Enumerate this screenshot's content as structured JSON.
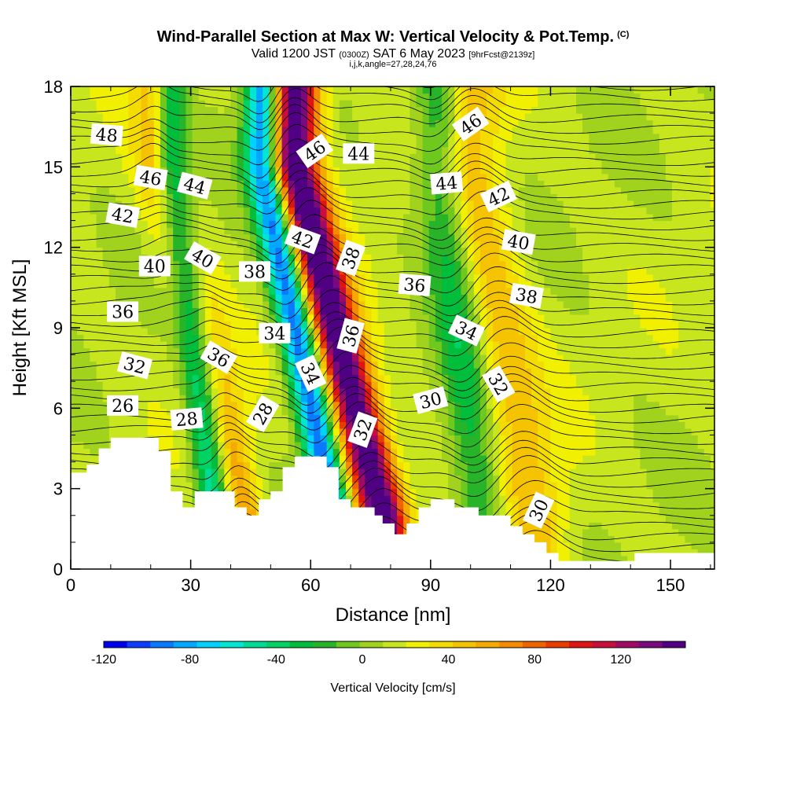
{
  "title": {
    "main": "Wind-Parallel Section at Max W: Vertical Velocity & Pot.Temp.",
    "copyright": "(C)",
    "valid_prefix": "Valid 1200 JST",
    "valid_utc": "(0300Z)",
    "valid_date": "SAT 6 May 2023",
    "forecast": "[9hrFcst@2139z]",
    "indices": "i,j,k,angle=27,28,24,76"
  },
  "colors": {
    "terrain": "#ffffff",
    "contour": "#000000",
    "scale": [
      "#0000f0",
      "#0c3cff",
      "#0a78ff",
      "#00a8ff",
      "#00d2ff",
      "#00e6d2",
      "#00dc96",
      "#00d264",
      "#00be3c",
      "#28b428",
      "#6ec81e",
      "#a0d21e",
      "#c8e61e",
      "#f0f000",
      "#f5dc00",
      "#f5c300",
      "#f5aa00",
      "#f58c00",
      "#f06400",
      "#eb3c00",
      "#e11414",
      "#c80f3c",
      "#a00a64",
      "#780a7d",
      "#500082"
    ]
  },
  "chart_data": {
    "type": "heatmap",
    "xlabel": "Distance [nm]",
    "ylabel": "Height [Kft MSL]",
    "xlim": [
      0,
      161
    ],
    "ylim": [
      0,
      18
    ],
    "xticks": [
      0,
      30,
      60,
      90,
      120,
      150
    ],
    "yticks": [
      0,
      3,
      6,
      9,
      12,
      15,
      18
    ],
    "colorbar": {
      "label": "Vertical Velocity [cm/s]",
      "min": -120,
      "max": 150,
      "step": 10,
      "ticks": [
        -120,
        -80,
        -40,
        0,
        40,
        80,
        120
      ]
    },
    "updrafts": [
      {
        "x_base": 42,
        "x_top": 23,
        "amplitude": 65,
        "width": 6
      },
      {
        "x_base": 78,
        "x_top": 56,
        "amplitude": 140,
        "width": 6
      },
      {
        "x_base": 116,
        "x_top": 100,
        "amplitude": 35,
        "width": 8
      }
    ],
    "downdrafts": [
      {
        "x_base": 37,
        "x_top": 25,
        "amplitude": 95,
        "width": 4.5
      },
      {
        "x_base": 66,
        "x_top": 48,
        "amplitude": 105,
        "width": 4.5
      },
      {
        "x_base": 103,
        "x_top": 92,
        "amplitude": 40,
        "width": 6
      }
    ],
    "terrain": [
      {
        "x": 0,
        "h": 3.6
      },
      {
        "x": 4,
        "h": 3.9
      },
      {
        "x": 7,
        "h": 4.5
      },
      {
        "x": 10,
        "h": 4.9
      },
      {
        "x": 22,
        "h": 4.4
      },
      {
        "x": 25,
        "h": 2.9
      },
      {
        "x": 28,
        "h": 2.3
      },
      {
        "x": 31,
        "h": 2.9
      },
      {
        "x": 38,
        "h": 2.9
      },
      {
        "x": 41,
        "h": 2.3
      },
      {
        "x": 44,
        "h": 2.0
      },
      {
        "x": 47,
        "h": 2.6
      },
      {
        "x": 50,
        "h": 2.9
      },
      {
        "x": 53,
        "h": 3.8
      },
      {
        "x": 56,
        "h": 4.2
      },
      {
        "x": 64,
        "h": 3.8
      },
      {
        "x": 67,
        "h": 2.6
      },
      {
        "x": 70,
        "h": 2.3
      },
      {
        "x": 76,
        "h": 2.0
      },
      {
        "x": 78,
        "h": 1.7
      },
      {
        "x": 81,
        "h": 1.3
      },
      {
        "x": 84,
        "h": 1.7
      },
      {
        "x": 87,
        "h": 2.3
      },
      {
        "x": 90,
        "h": 2.6
      },
      {
        "x": 96,
        "h": 2.3
      },
      {
        "x": 102,
        "h": 2.0
      },
      {
        "x": 110,
        "h": 1.6
      },
      {
        "x": 113,
        "h": 1.3
      },
      {
        "x": 116,
        "h": 1.0
      },
      {
        "x": 119,
        "h": 0.6
      },
      {
        "x": 122,
        "h": 0.3
      },
      {
        "x": 125,
        "h": 0.3
      },
      {
        "x": 141,
        "h": 0.6
      },
      {
        "x": 161,
        "h": 0.6
      }
    ],
    "contours": {
      "levels": [
        26,
        28,
        30,
        32,
        34,
        36,
        38,
        40,
        42,
        44,
        46,
        48
      ]
    },
    "contour_labels": [
      {
        "text": "48",
        "x": 9,
        "y": 16.2,
        "angle": 5
      },
      {
        "text": "46",
        "x": 20,
        "y": 14.6,
        "angle": 10
      },
      {
        "text": "44",
        "x": 31,
        "y": 14.3,
        "angle": 15
      },
      {
        "text": "42",
        "x": 13,
        "y": 13.2,
        "angle": 10
      },
      {
        "text": "40",
        "x": 21,
        "y": 11.3,
        "angle": 0
      },
      {
        "text": "40",
        "x": 33,
        "y": 11.6,
        "angle": 30
      },
      {
        "text": "38",
        "x": 46,
        "y": 11.1,
        "angle": 0
      },
      {
        "text": "42",
        "x": 58,
        "y": 12.3,
        "angle": 20
      },
      {
        "text": "46",
        "x": 61,
        "y": 15.6,
        "angle": -35
      },
      {
        "text": "44",
        "x": 72,
        "y": 15.5,
        "angle": 0
      },
      {
        "text": "38",
        "x": 70,
        "y": 11.6,
        "angle": -70
      },
      {
        "text": "36",
        "x": 86,
        "y": 10.6,
        "angle": 5
      },
      {
        "text": "44",
        "x": 94,
        "y": 14.4,
        "angle": -5
      },
      {
        "text": "46",
        "x": 100,
        "y": 16.6,
        "angle": -35
      },
      {
        "text": "42",
        "x": 107,
        "y": 13.9,
        "angle": -25
      },
      {
        "text": "40",
        "x": 112,
        "y": 12.2,
        "angle": 10
      },
      {
        "text": "38",
        "x": 114,
        "y": 10.2,
        "angle": 10
      },
      {
        "text": "36",
        "x": 13,
        "y": 9.6,
        "angle": 0
      },
      {
        "text": "34",
        "x": 51,
        "y": 8.8,
        "angle": 0
      },
      {
        "text": "36",
        "x": 37,
        "y": 7.9,
        "angle": 30
      },
      {
        "text": "36",
        "x": 70,
        "y": 8.7,
        "angle": -75
      },
      {
        "text": "34",
        "x": 99,
        "y": 8.9,
        "angle": 25
      },
      {
        "text": "32",
        "x": 16,
        "y": 7.6,
        "angle": 15
      },
      {
        "text": "34",
        "x": 60,
        "y": 7.3,
        "angle": 65
      },
      {
        "text": "32",
        "x": 107,
        "y": 6.9,
        "angle": 60
      },
      {
        "text": "26",
        "x": 13,
        "y": 6.1,
        "angle": 0
      },
      {
        "text": "28",
        "x": 29,
        "y": 5.6,
        "angle": -5
      },
      {
        "text": "28",
        "x": 48,
        "y": 5.8,
        "angle": -60
      },
      {
        "text": "30",
        "x": 90,
        "y": 6.3,
        "angle": -15
      },
      {
        "text": "32",
        "x": 73,
        "y": 5.2,
        "angle": -70
      },
      {
        "text": "30",
        "x": 117,
        "y": 2.2,
        "angle": -65
      }
    ]
  }
}
